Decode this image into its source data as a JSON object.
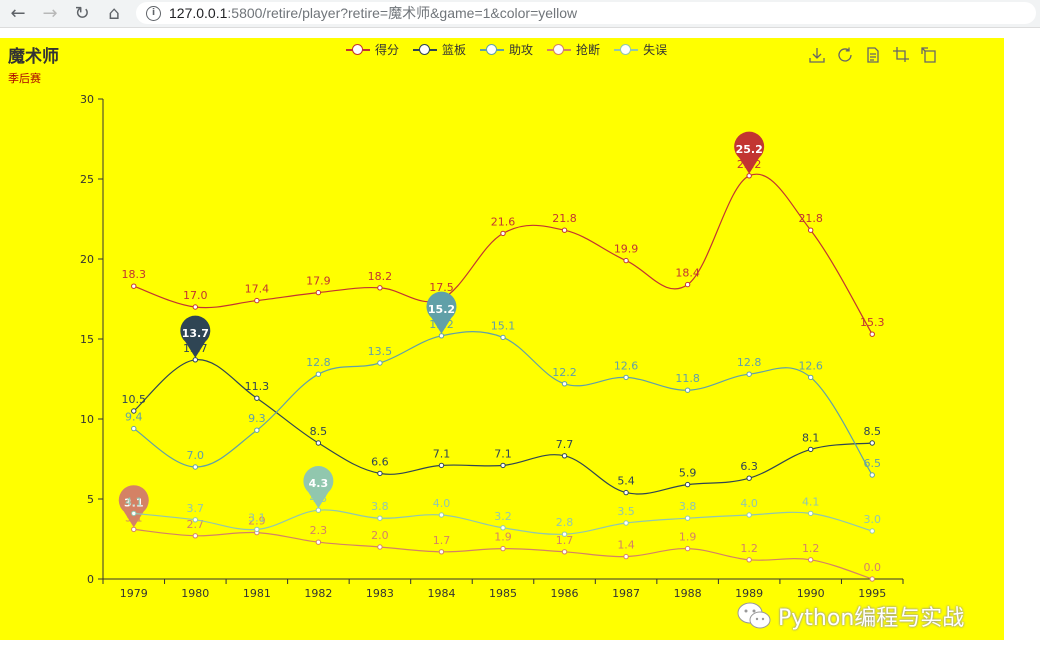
{
  "browser": {
    "url_host": "127.0.0.1",
    "url_rest": ":5800/retire/player?retire=魔术师&game=1&color=yellow"
  },
  "colors": {
    "background": "#ffff00",
    "series": [
      "#c23531",
      "#2f4554",
      "#61a0a8",
      "#d48265",
      "#91c7ae"
    ]
  },
  "watermark": {
    "text": "Python编程与实战"
  },
  "chart_data": {
    "type": "line",
    "title": "魔术师",
    "subtitle": "季后赛",
    "smooth": true,
    "legend_position": "top",
    "xlabel": "",
    "ylabel": "",
    "categories": [
      "1979",
      "1980",
      "1981",
      "1982",
      "1983",
      "1984",
      "1985",
      "1986",
      "1987",
      "1988",
      "1989",
      "1990",
      "1995"
    ],
    "ylim": [
      0,
      30
    ],
    "yticks": [
      0,
      5,
      10,
      15,
      20,
      25,
      30
    ],
    "series": [
      {
        "name": "得分",
        "values": [
          18.3,
          17.0,
          17.4,
          17.9,
          18.2,
          17.5,
          21.6,
          21.8,
          19.9,
          18.4,
          25.2,
          21.8,
          15.3
        ],
        "max_marker": 25.2
      },
      {
        "name": "篮板",
        "values": [
          10.5,
          13.7,
          11.3,
          8.5,
          6.6,
          7.1,
          7.1,
          7.7,
          5.4,
          5.9,
          6.3,
          8.1,
          8.5
        ],
        "max_marker": 13.7
      },
      {
        "name": "助攻",
        "values": [
          9.4,
          7.0,
          9.3,
          12.8,
          13.5,
          15.2,
          15.1,
          12.2,
          12.6,
          11.8,
          12.8,
          12.6,
          6.5
        ],
        "max_marker": 15.2
      },
      {
        "name": "抢断",
        "values": [
          3.1,
          2.7,
          2.9,
          2.3,
          2.0,
          1.7,
          1.9,
          1.7,
          1.4,
          1.9,
          1.2,
          1.2,
          0.0
        ],
        "max_marker": 3.1
      },
      {
        "name": "失误",
        "values": [
          4.1,
          3.7,
          3.1,
          4.3,
          3.8,
          4.0,
          3.2,
          2.8,
          3.5,
          3.8,
          4.0,
          4.1,
          3.0
        ],
        "max_marker": 4.3
      }
    ]
  },
  "toolbox": {
    "icons": [
      "save-image-icon",
      "restore-icon",
      "data-view-icon",
      "zoom-icon",
      "zoom-reset-icon"
    ]
  }
}
